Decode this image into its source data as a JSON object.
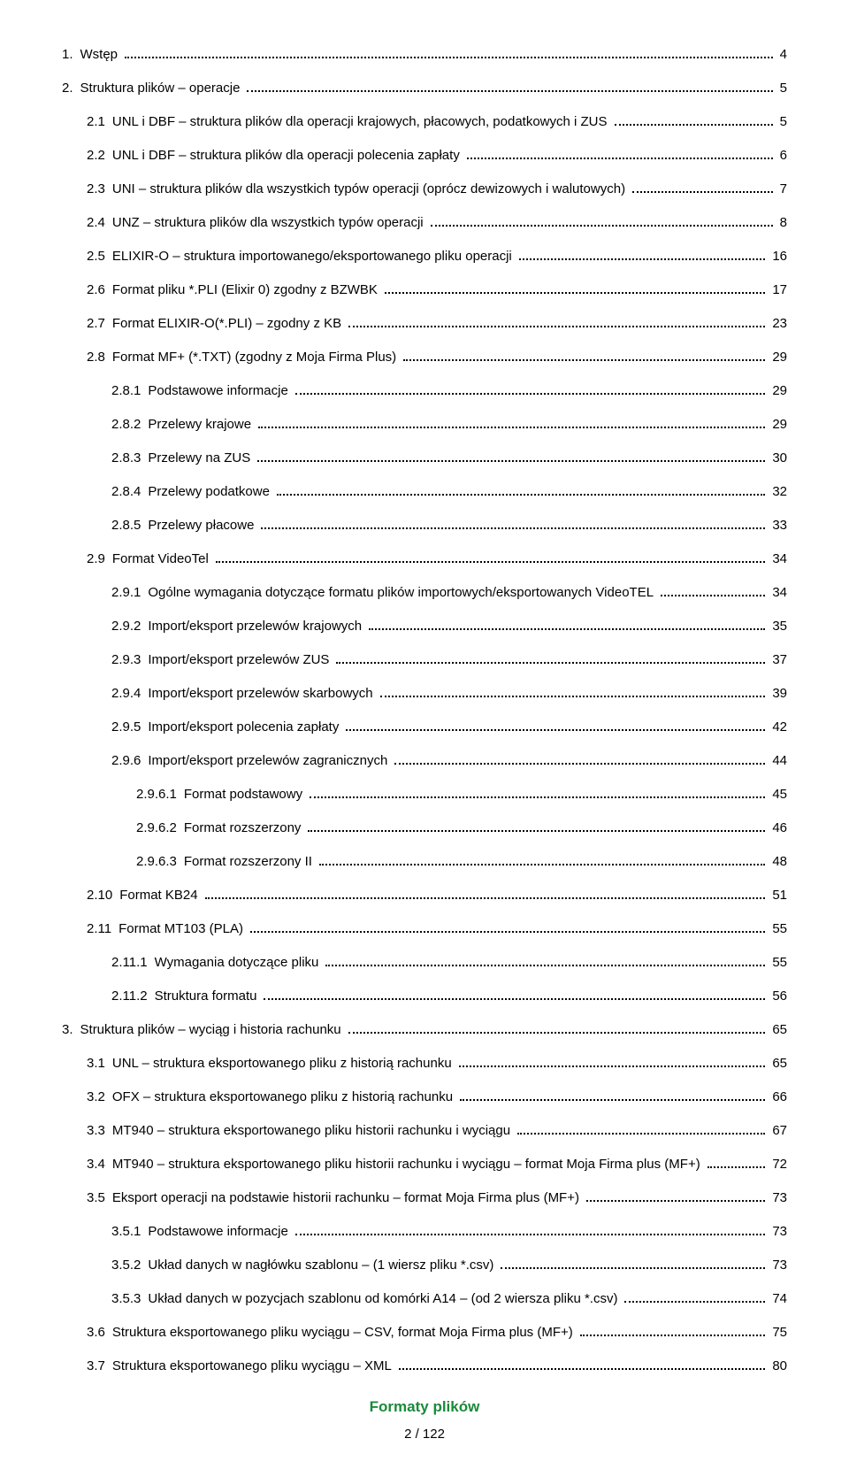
{
  "colors": {
    "text": "#000000",
    "background": "#ffffff",
    "accent_green": "#1a8a3a",
    "dot_color": "#000000"
  },
  "typography": {
    "font_family": "Arial",
    "body_fontsize_pt": 11,
    "footer_title_fontsize_pt": 13,
    "footer_title_weight": "bold"
  },
  "toc": [
    {
      "num": "1.",
      "title": "Wstęp",
      "page": "4",
      "indent": 0
    },
    {
      "num": "2.",
      "title": "Struktura plików – operacje",
      "page": "5",
      "indent": 0
    },
    {
      "num": "2.1",
      "title": "UNL i DBF – struktura plików dla operacji krajowych, płacowych, podatkowych i ZUS",
      "page": "5",
      "indent": 1
    },
    {
      "num": "2.2",
      "title": "UNL i DBF – struktura plików dla operacji polecenia zapłaty",
      "page": "6",
      "indent": 1
    },
    {
      "num": "2.3",
      "title": "UNI – struktura plików dla wszystkich typów operacji (oprócz dewizowych i walutowych)",
      "page": "7",
      "indent": 1
    },
    {
      "num": "2.4",
      "title": "UNZ – struktura plików dla wszystkich typów operacji",
      "page": "8",
      "indent": 1
    },
    {
      "num": "2.5",
      "title": "ELIXIR-O – struktura importowanego/eksportowanego pliku operacji",
      "page": "16",
      "indent": 1
    },
    {
      "num": "2.6",
      "title": "Format pliku *.PLI (Elixir 0) zgodny z BZWBK",
      "page": "17",
      "indent": 1
    },
    {
      "num": "2.7",
      "title": "Format ELIXIR-O(*.PLI) – zgodny z KB",
      "page": "23",
      "indent": 1
    },
    {
      "num": "2.8",
      "title": "Format MF+ (*.TXT) (zgodny z Moja Firma Plus)",
      "page": "29",
      "indent": 1
    },
    {
      "num": "2.8.1",
      "title": "Podstawowe informacje",
      "page": "29",
      "indent": 2
    },
    {
      "num": "2.8.2",
      "title": "Przelewy krajowe",
      "page": "29",
      "indent": 2
    },
    {
      "num": "2.8.3",
      "title": "Przelewy na ZUS",
      "page": "30",
      "indent": 2
    },
    {
      "num": "2.8.4",
      "title": "Przelewy podatkowe",
      "page": "32",
      "indent": 2
    },
    {
      "num": "2.8.5",
      "title": "Przelewy płacowe",
      "page": "33",
      "indent": 2
    },
    {
      "num": "2.9",
      "title": "Format VideoTel",
      "page": "34",
      "indent": 1
    },
    {
      "num": "2.9.1",
      "title": "Ogólne wymagania dotyczące formatu plików importowych/eksportowanych VideoTEL",
      "page": "34",
      "indent": 2
    },
    {
      "num": "2.9.2",
      "title": "Import/eksport przelewów krajowych",
      "page": "35",
      "indent": 2
    },
    {
      "num": "2.9.3",
      "title": "Import/eksport przelewów ZUS",
      "page": "37",
      "indent": 2
    },
    {
      "num": "2.9.4",
      "title": "Import/eksport przelewów skarbowych",
      "page": "39",
      "indent": 2
    },
    {
      "num": "2.9.5",
      "title": "Import/eksport polecenia zapłaty",
      "page": "42",
      "indent": 2
    },
    {
      "num": "2.9.6",
      "title": "Import/eksport przelewów zagranicznych",
      "page": "44",
      "indent": 2
    },
    {
      "num": "2.9.6.1",
      "title": "Format podstawowy",
      "page": "45",
      "indent": 3
    },
    {
      "num": "2.9.6.2",
      "title": "Format rozszerzony",
      "page": "46",
      "indent": 3
    },
    {
      "num": "2.9.6.3",
      "title": "Format rozszerzony II",
      "page": "48",
      "indent": 3
    },
    {
      "num": "2.10",
      "title": "Format KB24",
      "page": "51",
      "indent": 1
    },
    {
      "num": "2.11",
      "title": "Format MT103 (PLA)",
      "page": "55",
      "indent": 1
    },
    {
      "num": "2.11.1",
      "title": "Wymagania dotyczące pliku",
      "page": "55",
      "indent": 2
    },
    {
      "num": "2.11.2",
      "title": "Struktura formatu",
      "page": "56",
      "indent": 2
    },
    {
      "num": "3.",
      "title": "Struktura plików – wyciąg i historia rachunku",
      "page": "65",
      "indent": 0
    },
    {
      "num": "3.1",
      "title": "UNL – struktura eksportowanego pliku z historią rachunku",
      "page": "65",
      "indent": 1
    },
    {
      "num": "3.2",
      "title": "OFX – struktura eksportowanego pliku z historią rachunku",
      "page": "66",
      "indent": 1
    },
    {
      "num": "3.3",
      "title": "MT940 – struktura eksportowanego pliku historii rachunku i wyciągu",
      "page": "67",
      "indent": 1
    },
    {
      "num": "3.4",
      "title": "MT940 – struktura eksportowanego pliku historii rachunku i wyciągu – format Moja Firma plus (MF+)",
      "page": "72",
      "indent": 1
    },
    {
      "num": "3.5",
      "title": "Eksport operacji na podstawie historii rachunku – format Moja Firma plus (MF+)",
      "page": "73",
      "indent": 1
    },
    {
      "num": "3.5.1",
      "title": "Podstawowe informacje",
      "page": "73",
      "indent": 2
    },
    {
      "num": "3.5.2",
      "title": "Układ danych w nagłówku szablonu – (1 wiersz pliku *.csv)",
      "page": "73",
      "indent": 2
    },
    {
      "num": "3.5.3",
      "title": "Układ danych w pozycjach szablonu od  komórki A14 – (od 2 wiersza pliku *.csv)",
      "page": "74",
      "indent": 2
    },
    {
      "num": "3.6",
      "title": "Struktura eksportowanego pliku wyciągu – CSV, format Moja Firma plus (MF+)",
      "page": "75",
      "indent": 1
    },
    {
      "num": "3.7",
      "title": "Struktura eksportowanego pliku wyciągu – XML",
      "page": "80",
      "indent": 1
    }
  ],
  "footer": {
    "title": "Formaty plików",
    "page_indicator": "2 / 122"
  }
}
